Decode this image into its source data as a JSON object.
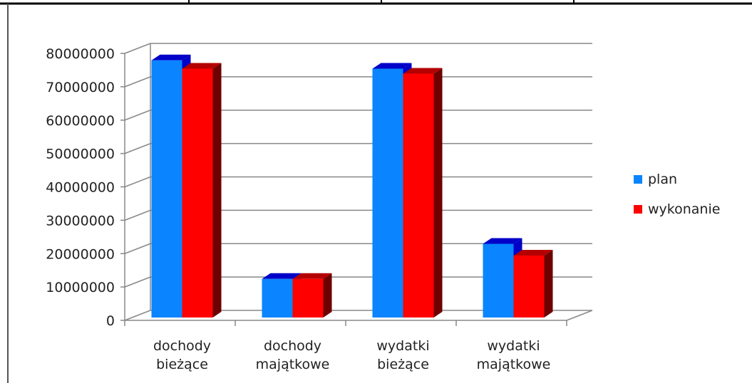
{
  "chart_data": {
    "type": "bar",
    "categories": [
      [
        "dochody",
        "bieżące"
      ],
      [
        "dochody",
        "majątkowe"
      ],
      [
        "wydatki",
        "bieżące"
      ],
      [
        "wydatki",
        "majątkowe"
      ]
    ],
    "series": [
      {
        "name": "plan",
        "values": [
          77500000,
          12000000,
          75000000,
          22500000
        ],
        "color": "#0a84ff",
        "side": "#0000c8",
        "top": "#0000c8"
      },
      {
        "name": "wykonanie",
        "values": [
          75000000,
          12000000,
          73500000,
          19000000
        ],
        "color": "#ff0000",
        "side": "#6e0000",
        "top": "#b40000"
      }
    ],
    "ylim": [
      0,
      80000000
    ],
    "yticks": [
      "0",
      "10000000",
      "20000000",
      "30000000",
      "40000000",
      "50000000",
      "60000000",
      "70000000",
      "80000000"
    ],
    "grid": true,
    "legend_position": "right"
  }
}
